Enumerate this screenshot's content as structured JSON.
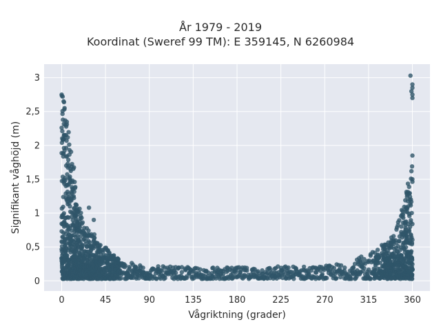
{
  "chart_data": {
    "type": "scatter",
    "title_line1": "År 1979 - 2019",
    "title_line2": "Koordinat (Sweref 99 TM): E 359145, N 6260984",
    "xlabel": "Vågriktning (grader)",
    "ylabel": "Signifikant våghöjd (m)",
    "xlim": [
      -18,
      378
    ],
    "ylim": [
      -0.15,
      3.2
    ],
    "x_ticks": [
      0,
      45,
      90,
      135,
      180,
      225,
      270,
      315,
      360
    ],
    "x_tick_labels": [
      "0",
      "45",
      "90",
      "135",
      "180",
      "225",
      "270",
      "315",
      "360"
    ],
    "y_ticks": [
      0,
      0.5,
      1,
      1.5,
      2,
      2.5,
      3
    ],
    "y_tick_labels": [
      "0",
      "0,5",
      "1",
      "1,5",
      "2",
      "2,5",
      "3"
    ],
    "grid": true,
    "marker_color": "#2f5569",
    "plot_background": "#e5e8f0",
    "envelope": [
      {
        "x": 0,
        "max": 2.75
      },
      {
        "x": 5,
        "max": 2.5
      },
      {
        "x": 10,
        "max": 1.9
      },
      {
        "x": 15,
        "max": 1.35
      },
      {
        "x": 20,
        "max": 1.0
      },
      {
        "x": 25,
        "max": 0.85
      },
      {
        "x": 30,
        "max": 0.75
      },
      {
        "x": 40,
        "max": 0.6
      },
      {
        "x": 50,
        "max": 0.42
      },
      {
        "x": 60,
        "max": 0.32
      },
      {
        "x": 75,
        "max": 0.25
      },
      {
        "x": 90,
        "max": 0.22
      },
      {
        "x": 135,
        "max": 0.2
      },
      {
        "x": 180,
        "max": 0.2
      },
      {
        "x": 225,
        "max": 0.22
      },
      {
        "x": 270,
        "max": 0.22
      },
      {
        "x": 300,
        "max": 0.3
      },
      {
        "x": 320,
        "max": 0.45
      },
      {
        "x": 335,
        "max": 0.6
      },
      {
        "x": 345,
        "max": 0.85
      },
      {
        "x": 352,
        "max": 1.2
      },
      {
        "x": 356,
        "max": 1.5
      },
      {
        "x": 360,
        "max": 1.7
      }
    ],
    "extreme_points": [
      {
        "x": 0,
        "y": 2.75
      },
      {
        "x": 1,
        "y": 2.72
      },
      {
        "x": 2,
        "y": 2.65
      },
      {
        "x": 3,
        "y": 2.55
      },
      {
        "x": 358,
        "y": 3.03
      },
      {
        "x": 360,
        "y": 2.9
      },
      {
        "x": 360,
        "y": 2.85
      },
      {
        "x": 359,
        "y": 2.8
      },
      {
        "x": 360,
        "y": 2.75
      },
      {
        "x": 360,
        "y": 2.7
      },
      {
        "x": 360,
        "y": 1.85
      },
      {
        "x": 359,
        "y": 1.62
      },
      {
        "x": 360,
        "y": 1.5
      },
      {
        "x": 28,
        "y": 1.08
      },
      {
        "x": 33,
        "y": 0.9
      },
      {
        "x": 340,
        "y": 0.58
      },
      {
        "x": 150,
        "y": 0.07
      },
      {
        "x": 210,
        "y": 0.1
      }
    ]
  }
}
